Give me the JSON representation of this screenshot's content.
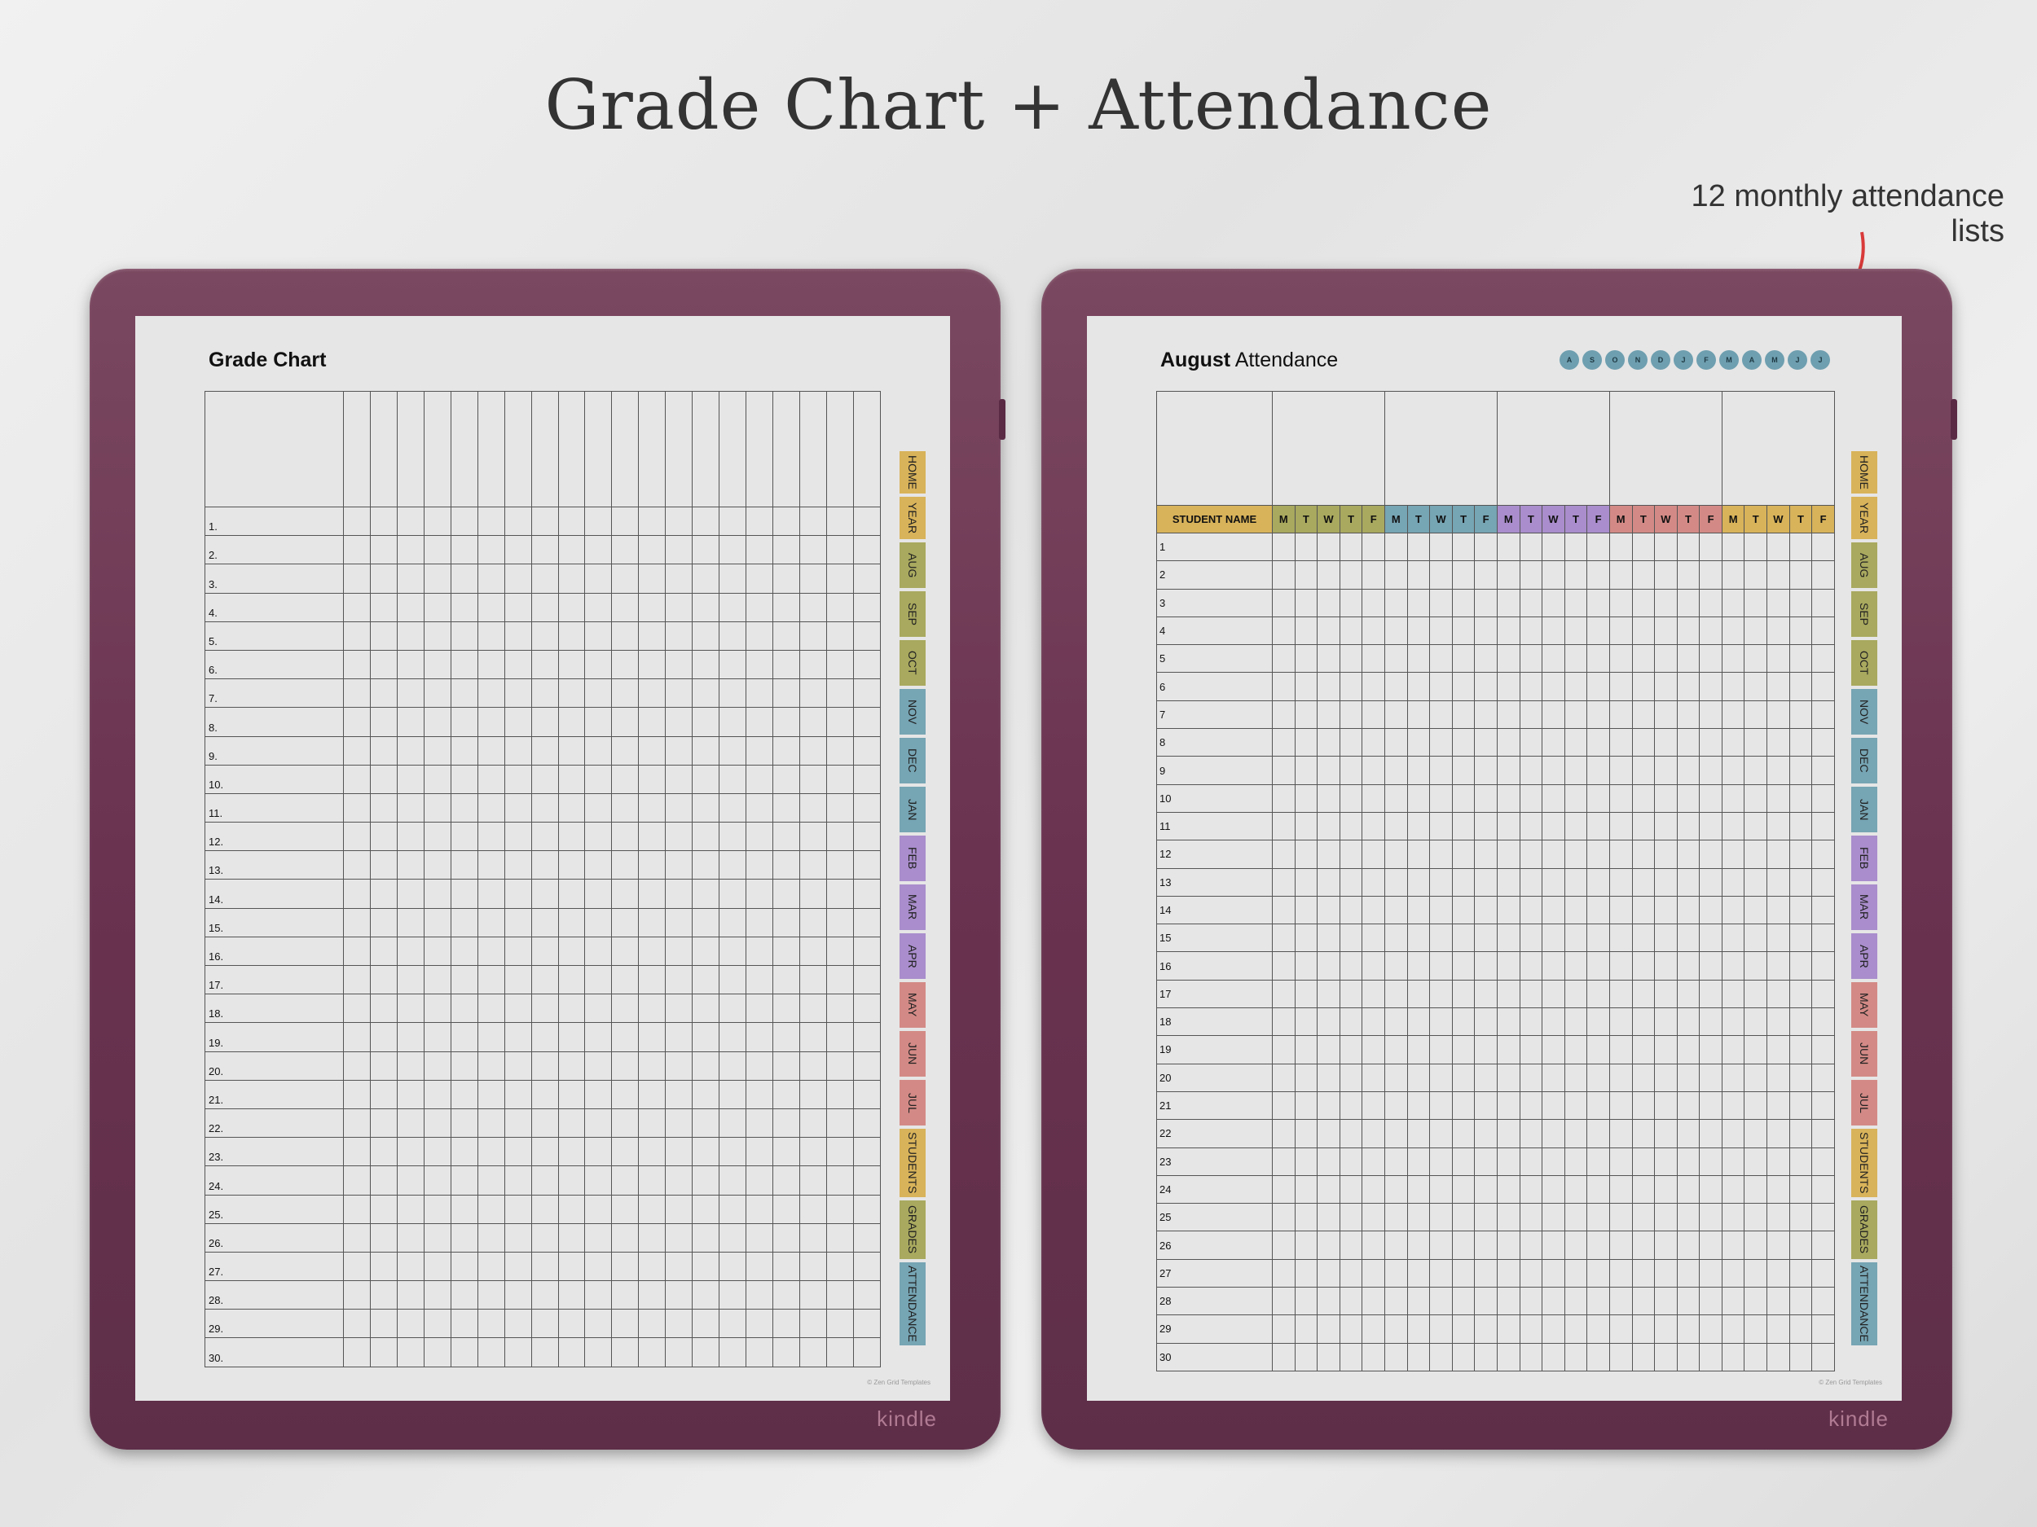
{
  "headline": "Grade Chart + Attendance",
  "annotation": "12 monthly attendance lists",
  "colors": {
    "yellow": "#d8b35a",
    "olive": "#a9a95f",
    "blue": "#76a5b4",
    "purple": "#a98dcc",
    "rose": "#d38a86",
    "device": "#6a3350",
    "arrow": "#d93a3a"
  },
  "brand": "kindle",
  "copyright": "© Zen Grid Templates",
  "tabs": [
    {
      "label": "HOME",
      "color": "#d8b35a"
    },
    {
      "label": "YEAR",
      "color": "#d8b35a"
    },
    {
      "label": "AUG",
      "color": "#a9a95f"
    },
    {
      "label": "SEP",
      "color": "#a9a95f"
    },
    {
      "label": "OCT",
      "color": "#a9a95f"
    },
    {
      "label": "NOV",
      "color": "#76a5b4"
    },
    {
      "label": "DEC",
      "color": "#76a5b4"
    },
    {
      "label": "JAN",
      "color": "#76a5b4"
    },
    {
      "label": "FEB",
      "color": "#a98dcc"
    },
    {
      "label": "MAR",
      "color": "#a98dcc"
    },
    {
      "label": "APR",
      "color": "#a98dcc"
    },
    {
      "label": "MAY",
      "color": "#d38a86"
    },
    {
      "label": "JUN",
      "color": "#d38a86"
    },
    {
      "label": "JUL",
      "color": "#d38a86"
    },
    {
      "label": "STUDENTS",
      "color": "#d8b35a"
    },
    {
      "label": "GRADES",
      "color": "#a9a95f"
    },
    {
      "label": "ATTENDANCE",
      "color": "#76a5b4"
    }
  ],
  "grade_chart": {
    "title": "Grade Chart",
    "grade_columns": 20,
    "rows": [
      "1.",
      "2.",
      "3.",
      "4.",
      "5.",
      "6.",
      "7.",
      "8.",
      "9.",
      "10.",
      "11.",
      "12.",
      "13.",
      "14.",
      "15.",
      "16.",
      "17.",
      "18.",
      "19.",
      "20.",
      "21.",
      "22.",
      "23.",
      "24.",
      "25.",
      "26.",
      "27.",
      "28.",
      "29.",
      "30."
    ]
  },
  "attendance": {
    "title_month": "August",
    "title_rest": "Attendance",
    "month_dots": [
      "A",
      "S",
      "O",
      "N",
      "D",
      "J",
      "F",
      "M",
      "A",
      "M",
      "J",
      "J"
    ],
    "name_header": "STUDENT NAME",
    "weekdays": [
      "M",
      "T",
      "W",
      "T",
      "F"
    ],
    "week_colors": [
      "#a9a95f",
      "#76a5b4",
      "#a98dcc",
      "#d38a86",
      "#d8b35a"
    ],
    "rows": [
      "1",
      "2",
      "3",
      "4",
      "5",
      "6",
      "7",
      "8",
      "9",
      "10",
      "11",
      "12",
      "13",
      "14",
      "15",
      "16",
      "17",
      "18",
      "19",
      "20",
      "21",
      "22",
      "23",
      "24",
      "25",
      "26",
      "27",
      "28",
      "29",
      "30"
    ]
  }
}
